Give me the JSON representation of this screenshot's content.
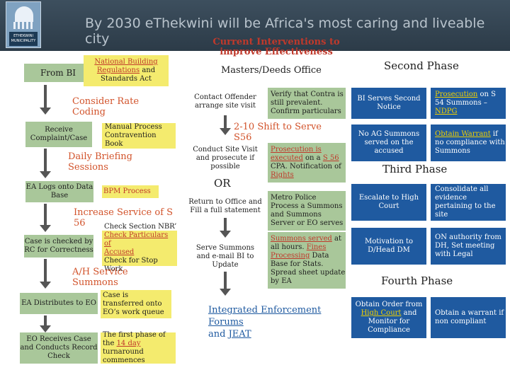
{
  "header": {
    "title": "By 2030 eThekwini will be Africa's most caring and liveable city",
    "logo_text": "ETHEKWINI MUNICIPALITY"
  },
  "left": {
    "from_bi": "From BI",
    "nbr": {
      "link": "National Building Regulations",
      "rest": " and Standards Act"
    },
    "consider_rate": "Consider Rate Coding",
    "receive": "Receive Complaint/Case",
    "manual": "Manual Process Contravention Book",
    "daily": "Daily Briefing Sessions",
    "ea_logs": "EA Logs onto Data Base",
    "bpm": "BPM Process",
    "increase": "Increase Service of S 56",
    "case_checked": "Case is checked by RC for Correctness",
    "check_section": {
      "l1": "Check Section NBR’",
      "l2": "Check Particulars of",
      "l3": "Accused",
      "l4": "Check for Stop Work"
    },
    "ah": "A/H Service Summons",
    "ea_dist": "EA Distributes to EO",
    "transferred": "Case is transferred onto EO’s work queue",
    "eo_receives": "EO Receives Case and Conducts Record Check",
    "first_phase": {
      "a": "The first phase of the ",
      "link": "14 day",
      "b": " turnaround commences"
    }
  },
  "middle": {
    "current": "Current Interventions to improve Effectiveness",
    "masters": "Masters/Deeds Office",
    "contact": "Contact Offender arrange site visit",
    "verify": "Verify that Contra is still prevalent. Confirm particulars",
    "shift": "2-10 Shift to Serve S56",
    "conduct": "Conduct Site Visit and prosecute if possible",
    "prosecution": {
      "link1": "Prosecution is",
      "link2": "executed",
      "a": " on a ",
      "link3": "S 56",
      "b": " CPA. Notification of ",
      "link4": "Rights"
    },
    "or": "OR",
    "return": "Return to Office and Fill a full statement",
    "metro": "Metro Police Process a Summons and Summons Server or EO serves",
    "serve": "Serve Summons and e-mail BI to Update",
    "summons": {
      "link1": "Summons served",
      "a": " at all hours. ",
      "link2": "Fines",
      "link3": "Processing",
      "b": " Data Base for Stats. Spread sheet update by EA"
    },
    "integrated": {
      "l1": "Integrated Enforcement Forums",
      "a": "and ",
      "l2": "JEAT"
    }
  },
  "right": {
    "second_phase": "Second Phase",
    "bi_serves": "BI Serves Second Notice",
    "prosecution_s54": {
      "link": "Prosecution",
      "a": " on S 54 Summons – ",
      "link2": "NDPG"
    },
    "no_ag": "No AG Summons served on the accused",
    "obtain_warrant": {
      "link": "Obtain Warrant",
      "a": " if no compliance with Summons"
    },
    "third_phase": "Third Phase",
    "escalate": "Escalate to High Court",
    "consolidate": "Consolidate all evidence pertaining to the site",
    "motivation": "Motivation to D/Head DM",
    "on_authority": "ON authority from DH, Set meeting with Legal",
    "fourth_phase": "Fourth Phase",
    "obtain_order": {
      "a": "Obtain Order from ",
      "link": "High Court",
      "b": " and Monitor for Compliance"
    },
    "obtain_warrant2": "Obtain a warrant if non compliant"
  },
  "colors": {
    "green": "#a9c79a",
    "yellow": "#f4eb6e",
    "blue": "#1f5aa0",
    "orange": "#d2532b",
    "header": "#2c3b48"
  }
}
